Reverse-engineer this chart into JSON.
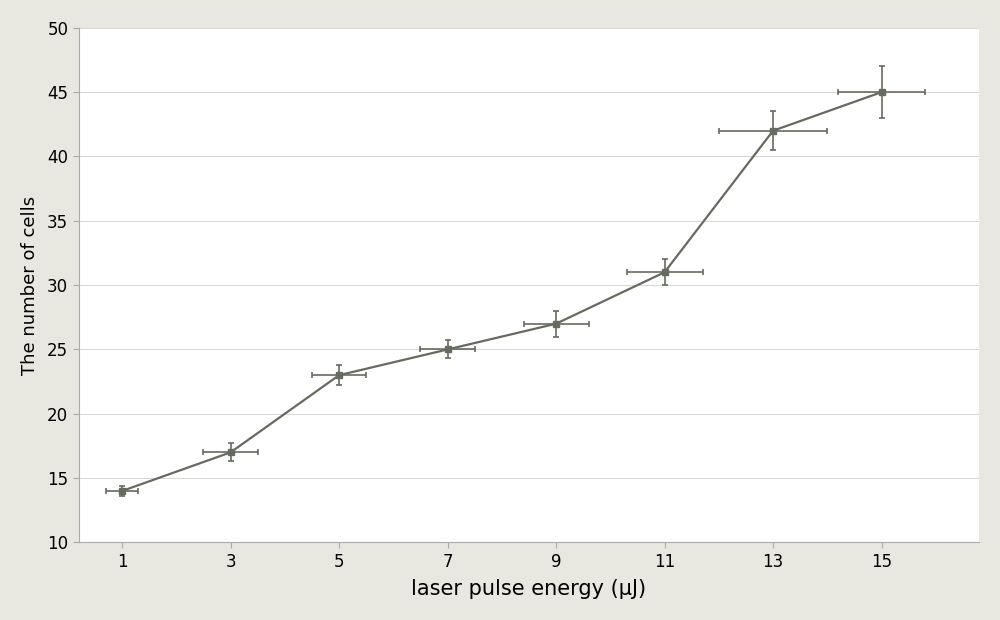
{
  "x": [
    1,
    3,
    5,
    7,
    9,
    11,
    13,
    15
  ],
  "y": [
    14,
    17,
    23,
    25,
    27,
    31,
    42,
    45
  ],
  "xerr": [
    0.3,
    0.5,
    0.5,
    0.5,
    0.6,
    0.7,
    1.0,
    0.8
  ],
  "yerr": [
    0.4,
    0.7,
    0.8,
    0.7,
    1.0,
    1.0,
    1.5,
    2.0
  ],
  "xlabel": "laser pulse energy (μJ)",
  "ylabel": "The number of cells",
  "xlim": [
    0.2,
    16.8
  ],
  "ylim": [
    10,
    50
  ],
  "xticks": [
    1,
    3,
    5,
    7,
    9,
    11,
    13,
    15
  ],
  "yticks": [
    10,
    15,
    20,
    25,
    30,
    35,
    40,
    45,
    50
  ],
  "line_color": "#666b60",
  "marker_color": "#666b60",
  "marker": "s",
  "marker_size": 5,
  "line_width": 1.6,
  "plot_bg_color": "#ffffff",
  "fig_bg_color": "#e8e8e0",
  "xlabel_fontsize": 15,
  "ylabel_fontsize": 13,
  "tick_fontsize": 12
}
